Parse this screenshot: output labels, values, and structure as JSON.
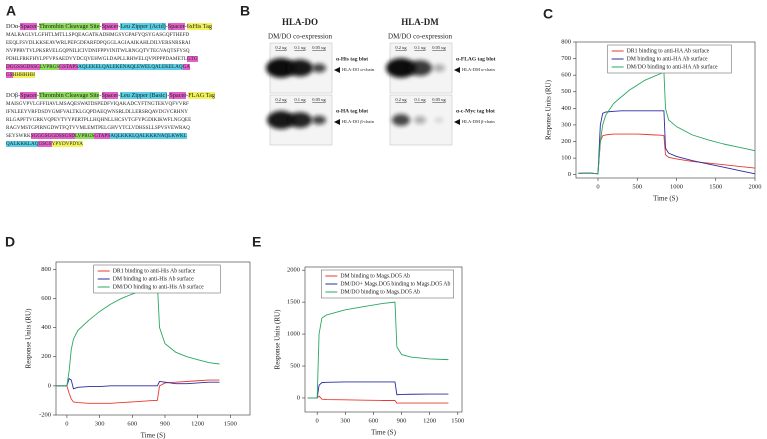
{
  "sequence_panel": {
    "panel_label": "A",
    "constructs": [
      {
        "header": [
          {
            "text": "DOα-"
          },
          {
            "text": "Spacer",
            "highlight": "#e360c9"
          },
          {
            "text": "-"
          },
          {
            "text": "Thrombin Cleavage Site",
            "highlight": "#8fdc5e"
          },
          {
            "text": "-"
          },
          {
            "text": "Spacer",
            "highlight": "#e360c9"
          },
          {
            "text": "-"
          },
          {
            "text": "Leu Zipper (Acid)",
            "highlight": "#58cfe6"
          },
          {
            "text": "-"
          },
          {
            "text": "Spacer",
            "highlight": "#e360c9"
          },
          {
            "text": "-"
          },
          {
            "text": "6xHis Tag",
            "highlight": "#f2f25a"
          }
        ],
        "lines": [
          [
            {
              "text": "MALRAGLVLGFHTLMTLLSPQEAGATKADHMGSYGPAFYQSYGASGQFTHEFD"
            }
          ],
          [
            {
              "text": "EEQLFSVDLKKSEAVWRLPEFGDFARFDPQGGLAGIAAIKAHLDILVERSNRSRAI"
            }
          ],
          [
            {
              "text": "NVPPRVTVLPKSRVELGQPNILICIVDNIFPPVINITWLRNGQTVTEGVAQTSFYSQ"
            }
          ],
          [
            {
              "text": "PDHLFRKFHYLPFVPSAEDVYDCQVEHWGLDAPLLRHWELQVPIPPPDAMETL"
            },
            {
              "text": "GTG",
              "highlight": "#e360c9"
            }
          ],
          [
            {
              "text": "DGGSSGDSSG",
              "highlight": "#e360c9"
            },
            {
              "text": "LVPRGS",
              "highlight": "#8fdc5e"
            },
            {
              "text": "GSTAPS",
              "highlight": "#e360c9"
            },
            {
              "text": "AQLEKELQALEKENAQLEWELQALEKELAQ",
              "highlight": "#58cfe6"
            },
            {
              "text": "GA",
              "highlight": "#e360c9"
            }
          ],
          [
            {
              "text": "GS",
              "highlight": "#e360c9"
            },
            {
              "text": "HHHHHH",
              "highlight": "#f2f25a"
            }
          ]
        ]
      },
      {
        "header": [
          {
            "text": "DOβ-"
          },
          {
            "text": "Spacer",
            "highlight": "#e360c9"
          },
          {
            "text": "-"
          },
          {
            "text": "Thrombin Cleavage Site",
            "highlight": "#8fdc5e"
          },
          {
            "text": "-"
          },
          {
            "text": "Spacer",
            "highlight": "#e360c9"
          },
          {
            "text": "-"
          },
          {
            "text": "Leu Zipper (Basic)",
            "highlight": "#58cfe6"
          },
          {
            "text": "-"
          },
          {
            "text": "Spacer",
            "highlight": "#e360c9"
          },
          {
            "text": "-"
          },
          {
            "text": "FLAG Tag",
            "highlight": "#f2f25a"
          }
        ],
        "lines": [
          [
            {
              "text": "MAISGVPVLGFFIIAVLMSAQESWATDSPEDFVIQAKADCYFTNGTEKVQFVVRF"
            }
          ],
          [
            {
              "text": "IFNLEEYVRFDSDVGMFVALTKLGQPDAEQWNSRLDLLERSRQAVDGVCRHNY"
            }
          ],
          [
            {
              "text": "RLGAPFTVGRKVQPEVTVYPERTPLLHQHNLLHCSVTGFYPGDIKIKWFLNGQEE"
            }
          ],
          [
            {
              "text": "RAGVMSTGPIRNGDWTFQTVVMLEMTPELGHVYTCLVDHSSLLSPVSVEWRAQ"
            }
          ],
          [
            {
              "text": "SEYSWRK"
            },
            {
              "text": "SGGGSGGDSSGSD",
              "highlight": "#e360c9"
            },
            {
              "text": "LVPRGS",
              "highlight": "#8fdc5e"
            },
            {
              "text": "GTAPS",
              "highlight": "#e360c9"
            },
            {
              "text": "AQLKKKLQALKKKNAQLKWKL",
              "highlight": "#58cfe6"
            }
          ],
          [
            {
              "text": "QALKKKLAQ",
              "highlight": "#58cfe6"
            },
            {
              "text": "GSGS",
              "highlight": "#e360c9"
            },
            {
              "text": "YPYDVPDYA",
              "highlight": "#f2f25a"
            }
          ]
        ]
      }
    ]
  },
  "blot_panel": {
    "panel_label": "B",
    "groups": [
      {
        "title": "HLA-DO",
        "subtitle": "DM/DO co-expression",
        "blots": [
          {
            "lanes": [
              "0.2 ug",
              "0.1 ug",
              "0.05 ug"
            ],
            "antibody": "α-His tag blot",
            "band": "HLA-DO α-chain"
          },
          {
            "lanes": [
              "0.2 ug",
              "0.1 ug",
              "0.05 ug"
            ],
            "antibody": "α-HA tag blot",
            "band": "HLA-DO β-chain"
          }
        ]
      },
      {
        "title": "HLA-DM",
        "subtitle": "DM/DO co-expression",
        "blots": [
          {
            "lanes": [
              "0.2 ug",
              "0.1 ug",
              "0.05 ug"
            ],
            "antibody": "α-FLAG tag blot",
            "band": "HLA-DM α-chain"
          },
          {
            "lanes": [
              "0.2 ug",
              "0.1 ug",
              "0.05 ug"
            ],
            "antibody": "α-c-Myc tag blot",
            "band": "HLA-DM β-chain"
          }
        ]
      }
    ]
  },
  "chart_data": [
    {
      "type": "line",
      "panel_label": "C",
      "x_label": "Time (S)",
      "y_label": "Response Units (RU)",
      "legend": "top",
      "x": [
        -250,
        -100,
        0,
        30,
        60,
        100,
        200,
        300,
        400,
        500,
        600,
        700,
        800,
        840,
        860,
        900,
        1000,
        1200,
        1400,
        1600,
        1800,
        2000
      ],
      "series": [
        {
          "name": "DR1 binding to anti-HA Ab surface",
          "color": "#e8392f",
          "values": [
            8,
            10,
            5,
            200,
            235,
            240,
            245,
            245,
            245,
            245,
            243,
            240,
            238,
            235,
            120,
            105,
            95,
            80,
            70,
            60,
            50,
            40
          ]
        },
        {
          "name": "DM binding to anti-HA Ab surface",
          "color": "#2c2ca0",
          "values": [
            8,
            10,
            5,
            300,
            370,
            378,
            382,
            385,
            385,
            385,
            385,
            385,
            385,
            385,
            160,
            130,
            110,
            85,
            65,
            45,
            25,
            5
          ]
        },
        {
          "name": "DM/DO binding to anti-HA Ab surface",
          "color": "#2aa860",
          "values": [
            8,
            10,
            5,
            200,
            300,
            360,
            430,
            470,
            510,
            540,
            570,
            590,
            610,
            620,
            400,
            330,
            290,
            240,
            210,
            185,
            165,
            145
          ]
        }
      ],
      "xlim": [
        -280,
        2000
      ],
      "xticks": [
        0,
        500,
        1000,
        1500,
        2000
      ],
      "ylim": [
        -20,
        800
      ],
      "yticks": [
        0,
        100,
        200,
        300,
        400,
        500,
        600,
        700,
        800
      ]
    },
    {
      "type": "line",
      "panel_label": "D",
      "x_label": "Time (S)",
      "y_label": "Response Units (RU)",
      "legend": "top",
      "x": [
        -100,
        0,
        20,
        40,
        60,
        100,
        200,
        300,
        400,
        500,
        600,
        700,
        800,
        830,
        850,
        900,
        1000,
        1100,
        1200,
        1300,
        1400
      ],
      "series": [
        {
          "name": "DR1 binding to anti-His Ab surface",
          "color": "#e8392f",
          "values": [
            0,
            0,
            -50,
            -90,
            -110,
            -115,
            -120,
            -120,
            -120,
            -115,
            -110,
            -105,
            -100,
            -100,
            0,
            20,
            25,
            30,
            35,
            40,
            40
          ]
        },
        {
          "name": "DM binding to anti-His Ab surface",
          "color": "#2c2ca0",
          "values": [
            0,
            0,
            50,
            40,
            -20,
            -10,
            -5,
            -5,
            0,
            0,
            0,
            0,
            0,
            0,
            30,
            25,
            15,
            15,
            20,
            25,
            25
          ]
        },
        {
          "name": "DM/DO binding to anti-His Ab surface",
          "color": "#2aa860",
          "values": [
            0,
            0,
            100,
            250,
            320,
            380,
            450,
            510,
            560,
            600,
            630,
            660,
            680,
            700,
            400,
            290,
            230,
            200,
            180,
            160,
            150
          ]
        }
      ],
      "xlim": [
        -100,
        1680
      ],
      "xticks": [
        0,
        300,
        600,
        900,
        1200,
        1500
      ],
      "ylim": [
        -200,
        850
      ],
      "yticks": [
        -200,
        0,
        200,
        400,
        600,
        800
      ]
    },
    {
      "type": "line",
      "panel_label": "E",
      "x_label": "Time (S)",
      "y_label": "Response Units (RU)",
      "legend": "top",
      "x": [
        -100,
        0,
        20,
        50,
        100,
        300,
        500,
        700,
        830,
        850,
        900,
        1000,
        1200,
        1400
      ],
      "series": [
        {
          "name": "DM binding to Mags.DO5 Ab",
          "color": "#e8392f",
          "values": [
            0,
            0,
            30,
            -20,
            -25,
            -30,
            -35,
            -40,
            -40,
            -80,
            -80,
            -80,
            -80,
            -80
          ]
        },
        {
          "name": "DM/DO+ Mags.DO5 binding to Mags.DO5 Ab",
          "color": "#2c2ca0",
          "values": [
            0,
            0,
            200,
            240,
            245,
            250,
            250,
            250,
            250,
            50,
            55,
            58,
            60,
            60
          ]
        },
        {
          "name": "DM/DO binding to Mags.DO5 Ab",
          "color": "#2aa860",
          "values": [
            0,
            0,
            1000,
            1250,
            1300,
            1380,
            1430,
            1480,
            1500,
            800,
            680,
            640,
            610,
            600
          ]
        }
      ],
      "xlim": [
        -130,
        1545
      ],
      "xticks": [
        0,
        300,
        600,
        900,
        1200,
        1500
      ],
      "ylim": [
        -220,
        2050
      ],
      "yticks": [
        0,
        500,
        1000,
        1500,
        2000
      ]
    }
  ]
}
